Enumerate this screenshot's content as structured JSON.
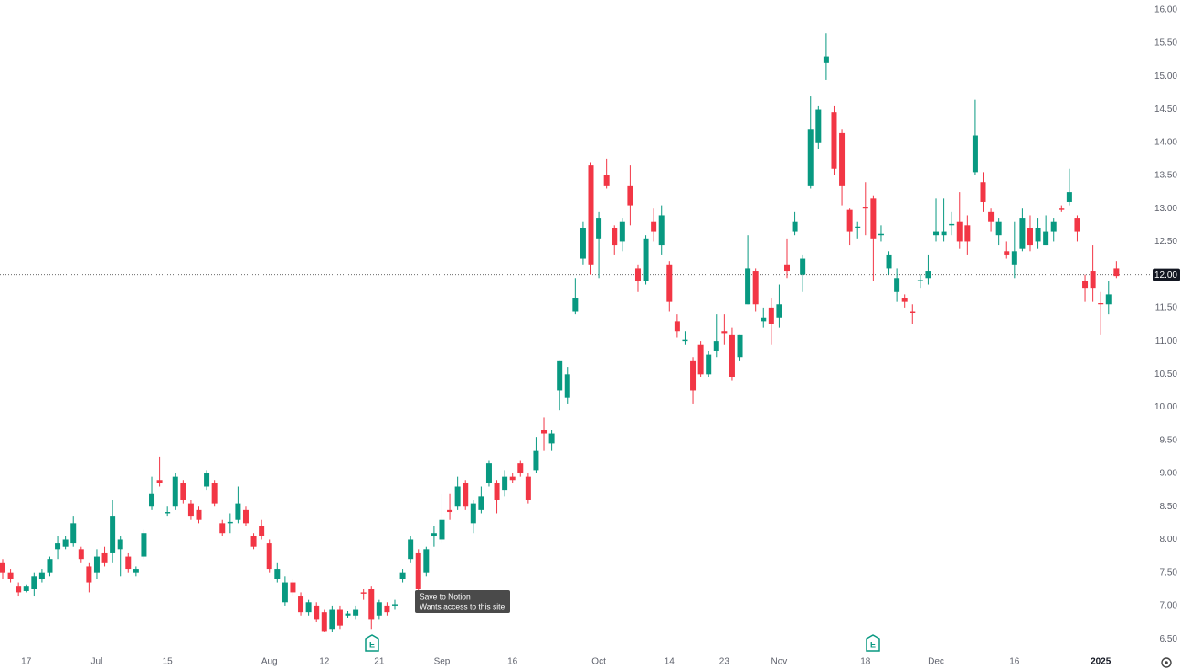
{
  "chart_data": {
    "type": "candlestick",
    "categories": [
      null,
      null,
      null,
      "17",
      null,
      null,
      null,
      null,
      null,
      null,
      null,
      null,
      "Jul",
      null,
      null,
      null,
      null,
      null,
      null,
      null,
      null,
      "15",
      null,
      null,
      null,
      null,
      null,
      null,
      null,
      null,
      null,
      null,
      null,
      null,
      "Aug",
      null,
      null,
      null,
      null,
      null,
      null,
      "12",
      null,
      null,
      null,
      null,
      null,
      null,
      "21",
      null,
      null,
      null,
      null,
      null,
      null,
      null,
      "Sep",
      null,
      null,
      null,
      null,
      null,
      null,
      null,
      null,
      "16",
      null,
      null,
      null,
      null,
      null,
      null,
      null,
      null,
      null,
      null,
      "Oct",
      null,
      null,
      null,
      null,
      null,
      null,
      null,
      null,
      "14",
      null,
      null,
      null,
      null,
      null,
      null,
      "23",
      null,
      null,
      null,
      null,
      null,
      null,
      "Nov",
      null,
      null,
      null,
      null,
      null,
      null,
      null,
      null,
      null,
      null,
      "18",
      null,
      null,
      null,
      null,
      null,
      null,
      null,
      null,
      "Dec",
      null,
      null,
      null,
      null,
      null,
      null,
      null,
      null,
      null,
      "16",
      null,
      null,
      null,
      null,
      null,
      null,
      null,
      null,
      null,
      null,
      "2025",
      null,
      null
    ],
    "open": [
      7.65,
      7.5,
      7.3,
      7.22,
      7.25,
      7.4,
      7.5,
      7.85,
      7.9,
      7.95,
      7.85,
      7.6,
      7.5,
      7.8,
      7.8,
      7.85,
      7.75,
      7.5,
      7.75,
      8.5,
      8.9,
      8.4,
      8.5,
      8.85,
      8.55,
      8.45,
      8.8,
      8.85,
      8.25,
      8.25,
      8.3,
      8.45,
      8.05,
      8.2,
      7.95,
      7.4,
      7.05,
      7.35,
      7.15,
      6.9,
      7.0,
      6.9,
      6.65,
      6.95,
      6.85,
      6.85,
      7.2,
      7.25,
      6.85,
      7.0,
      7.0,
      7.4,
      7.7,
      7.8,
      7.5,
      8.05,
      8.0,
      8.45,
      8.5,
      8.85,
      8.25,
      8.45,
      8.85,
      8.85,
      8.75,
      8.95,
      9.15,
      8.95,
      9.05,
      9.65,
      9.45,
      10.25,
      10.15,
      11.45,
      12.25,
      13.65,
      12.55,
      13.5,
      12.7,
      12.5,
      13.35,
      12.1,
      11.9,
      12.8,
      12.45,
      12.15,
      11.3,
      11.0,
      10.7,
      10.95,
      10.5,
      10.85,
      11.15,
      11.1,
      10.75,
      11.55,
      12.05,
      11.3,
      11.5,
      11.35,
      12.15,
      12.65,
      12.0,
      13.35,
      14.0,
      15.2,
      14.45,
      14.15,
      12.98,
      12.7,
      13.02,
      13.15,
      12.6,
      12.1,
      11.75,
      11.65,
      11.45,
      11.9,
      11.95,
      12.6,
      12.6,
      12.75,
      12.8,
      12.75,
      13.55,
      13.4,
      12.95,
      12.6,
      12.35,
      12.15,
      12.4,
      12.7,
      12.5,
      12.45,
      12.65,
      13.0,
      13.1,
      12.85,
      11.9,
      12.05,
      11.57,
      11.55,
      12.1
    ],
    "high": [
      7.7,
      7.55,
      7.35,
      7.32,
      7.5,
      7.55,
      7.75,
      8.05,
      8.05,
      8.35,
      7.9,
      7.65,
      7.85,
      7.9,
      8.6,
      8.05,
      7.8,
      7.6,
      8.15,
      8.95,
      9.25,
      8.5,
      9.0,
      8.9,
      8.6,
      8.5,
      9.05,
      8.9,
      8.3,
      8.4,
      8.8,
      8.5,
      8.1,
      8.3,
      8.0,
      7.65,
      7.45,
      7.4,
      7.2,
      7.1,
      7.05,
      6.95,
      7.0,
      7.0,
      6.92,
      7.0,
      7.25,
      7.3,
      7.1,
      7.05,
      7.1,
      7.55,
      8.05,
      7.85,
      7.9,
      8.2,
      8.7,
      8.7,
      8.95,
      8.9,
      8.6,
      8.8,
      9.2,
      8.9,
      9.05,
      9.0,
      9.2,
      9.0,
      9.55,
      9.85,
      9.65,
      10.7,
      10.6,
      11.95,
      12.8,
      13.7,
      12.95,
      13.75,
      12.75,
      12.85,
      13.65,
      12.15,
      12.6,
      13.0,
      13.05,
      12.2,
      11.4,
      11.15,
      10.75,
      11.0,
      10.85,
      11.4,
      11.4,
      11.2,
      11.1,
      12.6,
      12.1,
      11.5,
      11.65,
      11.85,
      12.55,
      12.95,
      12.3,
      14.7,
      14.55,
      15.65,
      14.55,
      14.2,
      13.0,
      12.8,
      13.4,
      13.2,
      12.75,
      12.35,
      12.1,
      11.7,
      11.55,
      12.0,
      12.3,
      13.15,
      13.15,
      12.95,
      13.25,
      12.9,
      14.65,
      13.55,
      13.0,
      12.85,
      12.5,
      12.8,
      13.0,
      12.9,
      12.85,
      12.9,
      12.85,
      13.05,
      13.6,
      12.9,
      12.0,
      12.45,
      11.75,
      11.9,
      12.2
    ],
    "low": [
      7.4,
      7.35,
      7.15,
      7.2,
      7.15,
      7.35,
      7.45,
      7.7,
      7.85,
      7.9,
      7.65,
      7.2,
      7.4,
      7.6,
      7.65,
      7.45,
      7.5,
      7.45,
      7.7,
      8.45,
      8.8,
      8.35,
      8.45,
      8.55,
      8.3,
      8.25,
      8.75,
      8.5,
      8.05,
      8.1,
      8.25,
      8.2,
      7.85,
      8.0,
      7.5,
      7.35,
      7.0,
      7.15,
      6.85,
      6.85,
      6.75,
      6.6,
      6.6,
      6.65,
      6.82,
      6.8,
      7.1,
      6.65,
      6.8,
      6.85,
      6.95,
      7.35,
      7.65,
      7.2,
      7.45,
      7.9,
      7.95,
      8.3,
      8.45,
      8.45,
      8.1,
      8.4,
      8.8,
      8.4,
      8.65,
      8.85,
      8.95,
      8.55,
      9.0,
      9.35,
      9.35,
      9.95,
      10.05,
      11.4,
      12.15,
      12.0,
      11.95,
      13.3,
      12.3,
      12.35,
      12.75,
      11.75,
      11.85,
      12.5,
      12.3,
      11.45,
      11.05,
      10.95,
      10.05,
      10.45,
      10.45,
      10.75,
      10.95,
      10.4,
      10.7,
      11.55,
      11.45,
      11.2,
      10.95,
      11.2,
      11.95,
      12.6,
      11.75,
      13.3,
      13.9,
      14.95,
      13.5,
      13.05,
      12.45,
      12.55,
      12.6,
      11.9,
      12.5,
      12.0,
      11.6,
      11.5,
      11.25,
      11.8,
      11.85,
      12.5,
      12.5,
      12.6,
      12.4,
      12.3,
      13.5,
      12.95,
      12.65,
      12.45,
      12.25,
      11.95,
      12.35,
      12.35,
      12.4,
      12.45,
      12.5,
      12.95,
      13.05,
      12.5,
      11.6,
      11.6,
      11.1,
      11.4,
      11.95
    ],
    "close": [
      7.5,
      7.4,
      7.2,
      7.3,
      7.45,
      7.5,
      7.7,
      7.95,
      8.0,
      8.25,
      7.7,
      7.35,
      7.75,
      7.65,
      8.35,
      8.0,
      7.55,
      7.55,
      8.1,
      8.7,
      8.85,
      8.42,
      8.95,
      8.6,
      8.35,
      8.3,
      9.0,
      8.55,
      8.1,
      8.27,
      8.55,
      8.25,
      7.9,
      8.05,
      7.55,
      7.55,
      7.35,
      7.2,
      6.9,
      7.05,
      6.8,
      6.62,
      6.95,
      6.7,
      6.88,
      6.95,
      7.18,
      6.8,
      7.05,
      6.9,
      7.02,
      7.5,
      8.0,
      7.25,
      7.85,
      8.1,
      8.3,
      8.42,
      8.8,
      8.5,
      8.55,
      8.65,
      9.15,
      8.6,
      8.95,
      8.9,
      9.0,
      8.6,
      9.35,
      9.6,
      9.6,
      10.7,
      10.5,
      11.65,
      12.7,
      12.15,
      12.85,
      13.35,
      12.45,
      12.8,
      13.05,
      11.9,
      12.55,
      12.65,
      12.9,
      11.6,
      11.15,
      11.02,
      10.25,
      10.5,
      10.8,
      11.0,
      11.12,
      10.45,
      11.1,
      12.1,
      11.55,
      11.35,
      11.25,
      11.55,
      12.05,
      12.8,
      12.25,
      14.2,
      14.5,
      15.3,
      13.6,
      13.35,
      12.65,
      12.73,
      13.0,
      12.55,
      12.62,
      12.3,
      11.95,
      11.6,
      11.42,
      11.92,
      12.05,
      12.65,
      12.65,
      12.77,
      12.5,
      12.5,
      14.1,
      13.1,
      12.8,
      12.8,
      12.3,
      12.35,
      12.85,
      12.45,
      12.7,
      12.65,
      12.8,
      12.98,
      13.25,
      12.65,
      11.8,
      11.8,
      11.55,
      11.7,
      11.98
    ],
    "up_color": "#089981",
    "down_color": "#f23645",
    "ylim": [
      6.35,
      16.15
    ],
    "yticks": [
      {
        "value": 6.5,
        "label": "6.50"
      },
      {
        "value": 7,
        "label": "7.00"
      },
      {
        "value": 7.5,
        "label": "7.50"
      },
      {
        "value": 8,
        "label": "8.00"
      },
      {
        "value": 8.5,
        "label": "8.50"
      },
      {
        "value": 9,
        "label": "9.00"
      },
      {
        "value": 9.5,
        "label": "9.50"
      },
      {
        "value": 10,
        "label": "10.00"
      },
      {
        "value": 10.5,
        "label": "10.50"
      },
      {
        "value": 11,
        "label": "11.00"
      },
      {
        "value": 11.5,
        "label": "11.50"
      },
      {
        "value": 12,
        "label": "12.00"
      },
      {
        "value": 12.5,
        "label": "12.50"
      },
      {
        "value": 13,
        "label": "13.00"
      },
      {
        "value": 13.5,
        "label": "13.50"
      },
      {
        "value": 14,
        "label": "14.00"
      },
      {
        "value": 14.5,
        "label": "14.50"
      },
      {
        "value": 15,
        "label": "15.00"
      },
      {
        "value": 15.5,
        "label": "15.50"
      },
      {
        "value": 16,
        "label": "16.00"
      }
    ],
    "grid": false,
    "last_price": {
      "value": 12,
      "label": "12.00"
    },
    "earnings_label": "E",
    "tooltip": [
      "Save to Notion",
      "Wants access to this site"
    ]
  }
}
